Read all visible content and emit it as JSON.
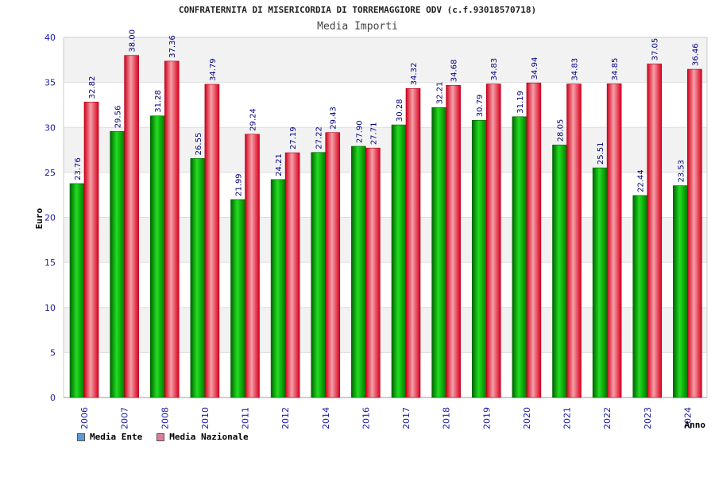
{
  "chart_data": {
    "type": "bar",
    "title": "CONFRATERNITA DI MISERICORDIA DI TORREMAGGIORE ODV (c.f.93018570718)",
    "subtitle": "Media Importi",
    "xlabel": "Anno",
    "ylabel": "Euro",
    "ylim": [
      0,
      40
    ],
    "yticks": [
      0,
      5,
      10,
      15,
      20,
      25,
      30,
      35,
      40
    ],
    "categories": [
      "2006",
      "2007",
      "2008",
      "2010",
      "2011",
      "2012",
      "2014",
      "2016",
      "2017",
      "2018",
      "2019",
      "2020",
      "2021",
      "2022",
      "2023",
      "2024"
    ],
    "series": [
      {
        "name": "Media Ente",
        "color": "#00b000",
        "values": [
          23.76,
          29.56,
          31.28,
          26.55,
          21.99,
          24.21,
          27.22,
          27.9,
          30.28,
          32.21,
          30.79,
          31.19,
          28.05,
          25.51,
          22.44,
          23.53
        ],
        "labels": [
          "23.76",
          "29.56",
          "31.28",
          "26.55",
          "21.99",
          "24.21",
          "27.22",
          "27.90",
          "30.28",
          "32.21",
          "30.79",
          "31.19",
          "28.05",
          "25.51",
          "22.44",
          "23.53"
        ]
      },
      {
        "name": "Media Nazionale",
        "color": "#e8102a",
        "values": [
          32.82,
          38.0,
          37.36,
          34.79,
          29.24,
          27.19,
          29.43,
          27.71,
          34.32,
          34.68,
          34.83,
          34.94,
          34.83,
          34.85,
          37.05,
          36.46
        ],
        "labels": [
          "32.82",
          "38.00",
          "37.36",
          "34.79",
          "29.24",
          "27.19",
          "29.43",
          "27.71",
          "34.32",
          "34.68",
          "34.83",
          "34.94",
          "34.83",
          "34.85",
          "37.05",
          "36.46"
        ]
      }
    ],
    "legend_position": "bottom-left",
    "legend_swatch_colors": [
      "#5b9bd5",
      "#e07aa0"
    ],
    "grid": true,
    "band_colors": [
      "#f2f2f2",
      "#ffffff"
    ]
  }
}
